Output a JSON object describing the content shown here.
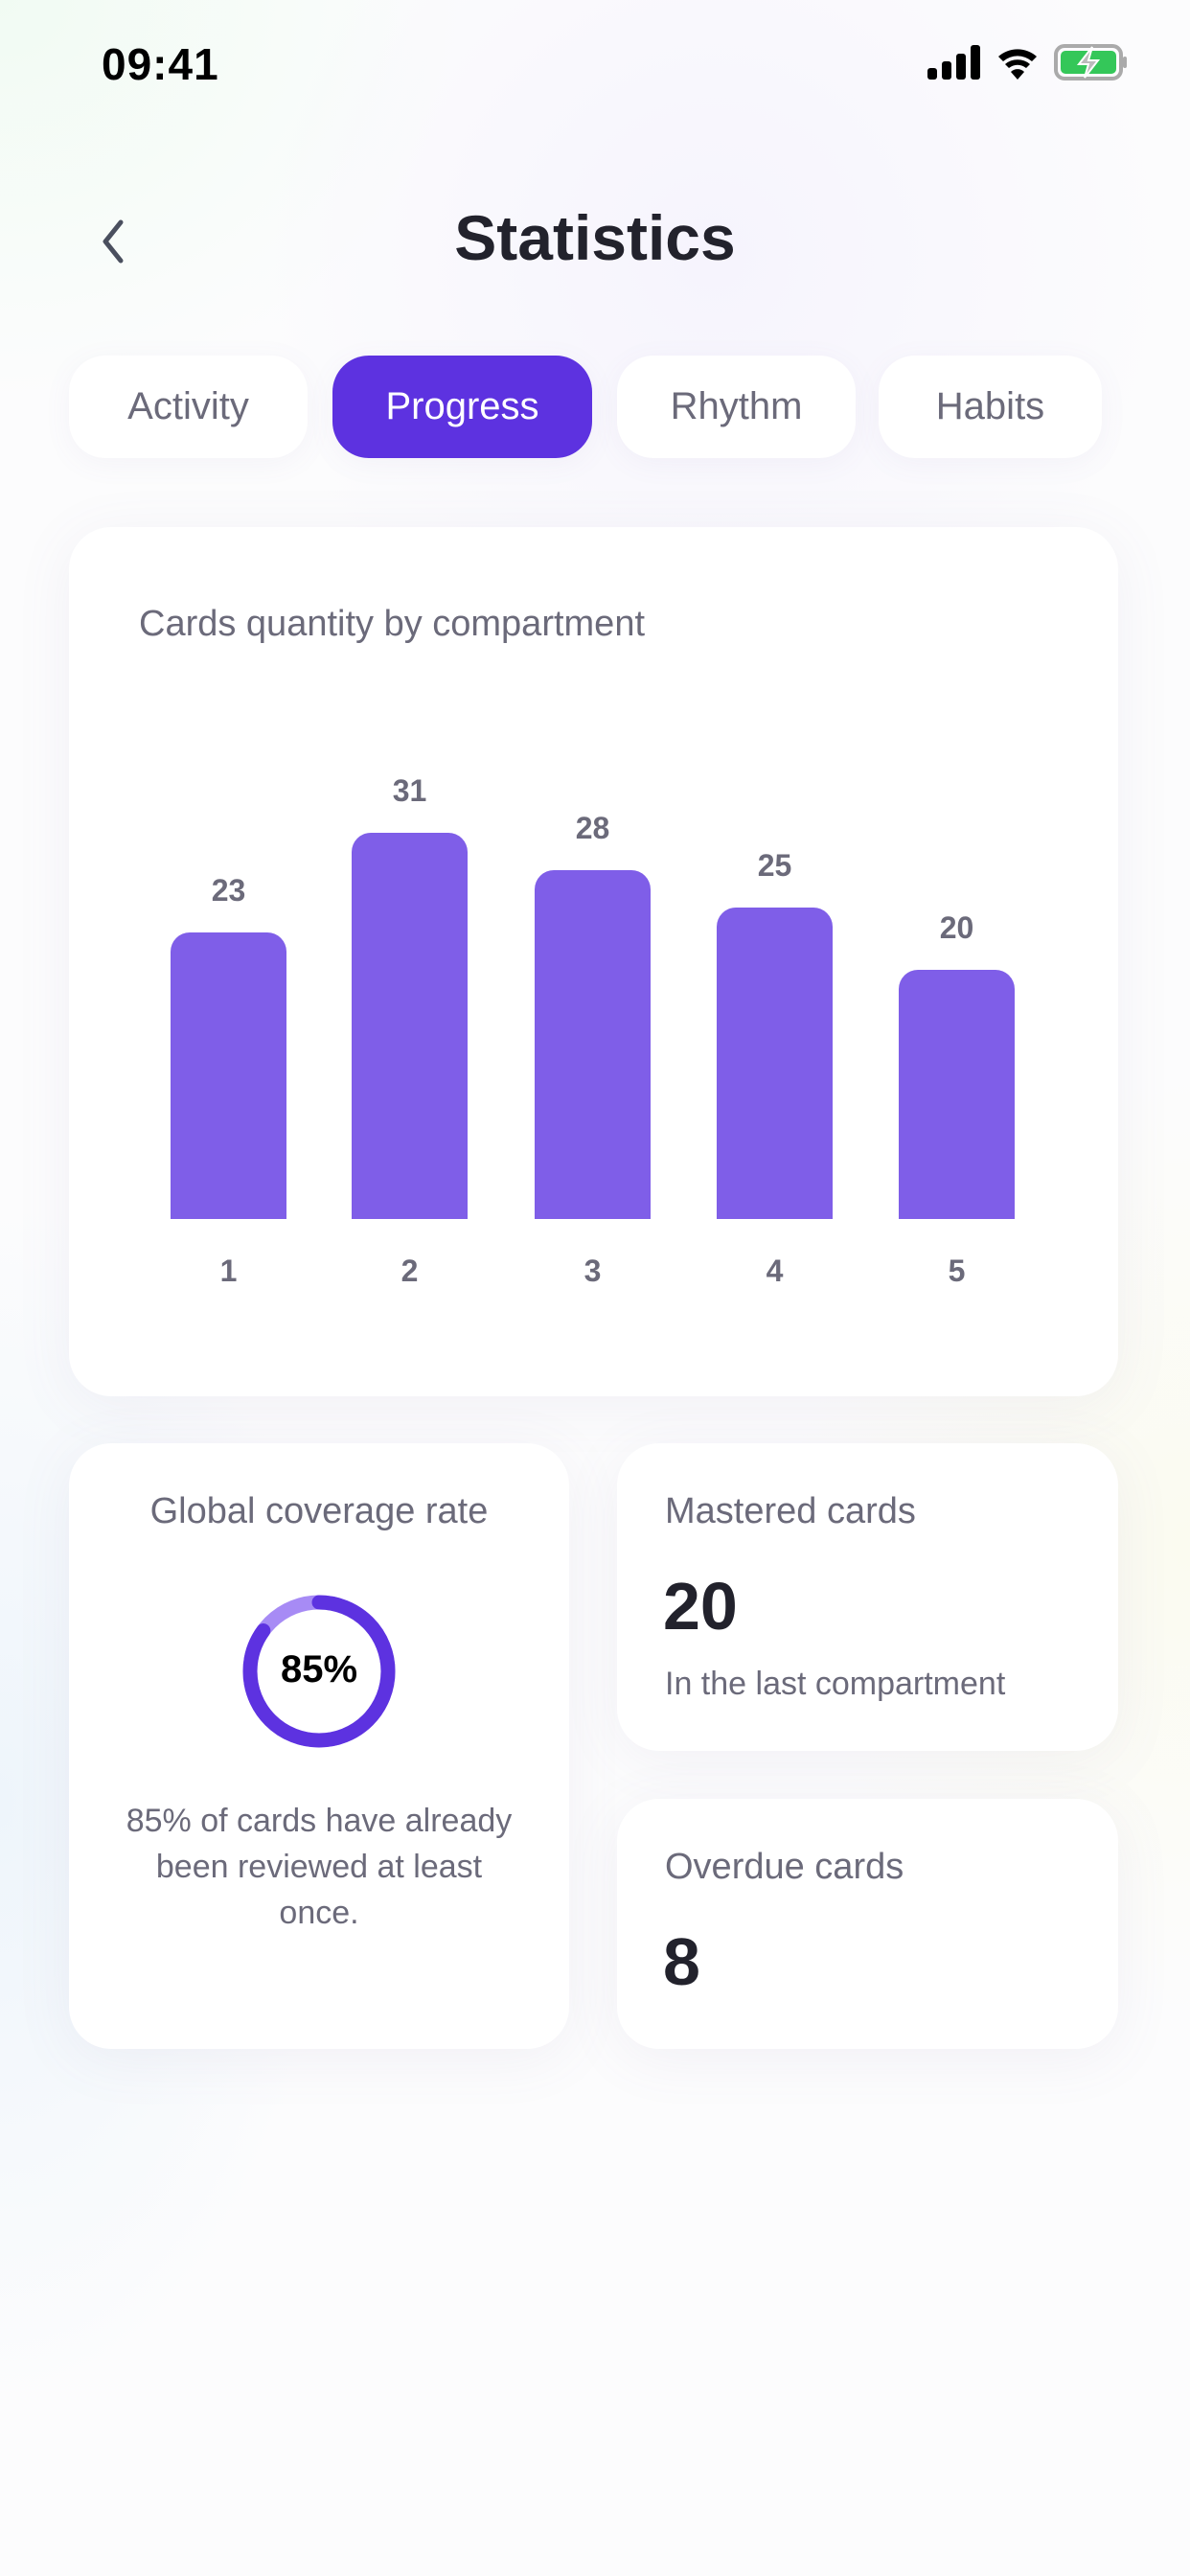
{
  "status_bar": {
    "time": "09:41",
    "icons": [
      "signal-icon",
      "wifi-icon",
      "battery-charging-icon"
    ]
  },
  "header": {
    "title": "Statistics",
    "back_icon": "chevron-left-icon"
  },
  "tabs": [
    {
      "label": "Activity",
      "active": false
    },
    {
      "label": "Progress",
      "active": true
    },
    {
      "label": "Rhythm",
      "active": false
    },
    {
      "label": "Habits",
      "active": false
    }
  ],
  "colors": {
    "accent": "#5d32e0",
    "bar": "#7f5ee8",
    "ring_track": "#a78bf5"
  },
  "chart_data": {
    "type": "bar",
    "title": "Cards quantity by compartment",
    "categories": [
      "1",
      "2",
      "3",
      "4",
      "5"
    ],
    "values": [
      23,
      31,
      28,
      25,
      20
    ],
    "xlabel": "",
    "ylabel": ""
  },
  "coverage": {
    "title": "Global coverage rate",
    "percent": 85,
    "label": "85%",
    "description": "85% of cards have already been reviewed at least once."
  },
  "mastered": {
    "title": "Mastered cards",
    "value": "20",
    "subtitle": "In the last compartment"
  },
  "overdue": {
    "title": "Overdue cards",
    "value": "8"
  }
}
